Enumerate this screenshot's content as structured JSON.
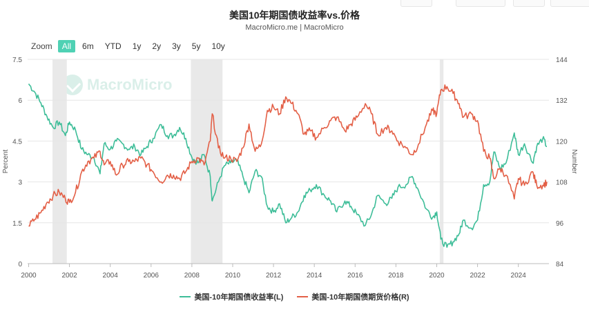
{
  "chart_data": {
    "type": "line",
    "title": "美国10年期国债收益率vs.价格",
    "subtitle": "MacroMicro.me | MacroMicro",
    "watermark": "MacroMicro",
    "ylabel_left": "Percent",
    "ylabel_right": "Number",
    "x_ticks": [
      "2000",
      "2002",
      "2004",
      "2006",
      "2008",
      "2010",
      "2012",
      "2014",
      "2016",
      "2018",
      "2020",
      "2022",
      "2024"
    ],
    "x_range": [
      1999.95,
      2025.5
    ],
    "y_left_ticks": [
      "0",
      "1.5",
      "3",
      "4.5",
      "6",
      "7.5"
    ],
    "y_left_range": [
      0,
      7.5
    ],
    "y_right_ticks": [
      "84",
      "96",
      "108",
      "120",
      "132",
      "144"
    ],
    "y_right_range": [
      84,
      144
    ],
    "grid": true,
    "legend_position": "bottom",
    "recession_bands": [
      [
        2001.17,
        2001.87
      ],
      [
        2007.95,
        2009.5
      ],
      [
        2020.15,
        2020.33
      ]
    ],
    "series": [
      {
        "name": "美国-10年期国债收益率(L)",
        "axis": "left",
        "color": "#3dbd98",
        "x": [
          2000.0,
          2000.3,
          2000.6,
          2000.9,
          2001.2,
          2001.5,
          2001.8,
          2002.0,
          2002.3,
          2002.6,
          2002.9,
          2003.2,
          2003.5,
          2003.7,
          2004.0,
          2004.3,
          2004.6,
          2004.9,
          2005.2,
          2005.5,
          2005.8,
          2006.1,
          2006.5,
          2006.8,
          2007.1,
          2007.4,
          2007.7,
          2008.0,
          2008.3,
          2008.6,
          2008.9,
          2009.0,
          2009.3,
          2009.6,
          2009.9,
          2010.2,
          2010.5,
          2010.8,
          2011.1,
          2011.4,
          2011.7,
          2012.0,
          2012.3,
          2012.6,
          2012.9,
          2013.2,
          2013.5,
          2013.8,
          2014.1,
          2014.5,
          2014.8,
          2015.1,
          2015.5,
          2015.8,
          2016.1,
          2016.5,
          2016.8,
          2017.1,
          2017.5,
          2017.8,
          2018.1,
          2018.5,
          2018.8,
          2019.1,
          2019.5,
          2019.8,
          2020.0,
          2020.2,
          2020.5,
          2020.8,
          2021.1,
          2021.3,
          2021.7,
          2022.0,
          2022.3,
          2022.6,
          2022.8,
          2023.1,
          2023.4,
          2023.8,
          2024.0,
          2024.3,
          2024.7,
          2024.9,
          2025.2,
          2025.4
        ],
        "values": [
          6.6,
          6.3,
          5.9,
          5.4,
          5.0,
          5.2,
          4.7,
          5.2,
          4.9,
          4.2,
          4.0,
          3.9,
          3.3,
          4.4,
          4.2,
          4.5,
          4.4,
          4.2,
          4.3,
          4.0,
          4.3,
          4.6,
          5.1,
          4.7,
          4.7,
          5.0,
          4.6,
          3.9,
          3.7,
          4.0,
          3.2,
          2.3,
          3.0,
          3.6,
          3.7,
          3.8,
          3.2,
          2.6,
          3.4,
          3.2,
          2.1,
          1.9,
          2.2,
          1.5,
          1.7,
          1.9,
          2.5,
          2.7,
          2.9,
          2.5,
          2.3,
          1.9,
          2.3,
          2.1,
          1.8,
          1.4,
          1.8,
          2.5,
          2.2,
          2.4,
          2.8,
          2.9,
          3.2,
          2.7,
          2.0,
          1.7,
          1.9,
          0.9,
          0.6,
          0.8,
          1.1,
          1.6,
          1.3,
          1.6,
          2.9,
          3.0,
          4.1,
          3.5,
          3.7,
          4.8,
          4.0,
          4.4,
          3.7,
          4.3,
          4.6,
          4.3
        ]
      },
      {
        "name": "美国-10年期国债期货价格(R)",
        "axis": "right",
        "color": "#e35f46",
        "x": [
          2000.0,
          2000.3,
          2000.6,
          2000.9,
          2001.2,
          2001.5,
          2001.8,
          2002.0,
          2002.3,
          2002.6,
          2002.9,
          2003.2,
          2003.5,
          2003.7,
          2004.0,
          2004.3,
          2004.6,
          2004.9,
          2005.2,
          2005.5,
          2005.8,
          2006.1,
          2006.5,
          2006.8,
          2007.1,
          2007.4,
          2007.7,
          2008.0,
          2008.3,
          2008.6,
          2008.9,
          2009.0,
          2009.3,
          2009.6,
          2009.9,
          2010.2,
          2010.5,
          2010.8,
          2011.1,
          2011.4,
          2011.7,
          2012.0,
          2012.3,
          2012.6,
          2012.9,
          2013.2,
          2013.5,
          2013.8,
          2014.1,
          2014.5,
          2014.8,
          2015.1,
          2015.5,
          2015.8,
          2016.1,
          2016.5,
          2016.8,
          2017.1,
          2017.5,
          2017.8,
          2018.1,
          2018.5,
          2018.8,
          2019.1,
          2019.5,
          2019.8,
          2020.0,
          2020.2,
          2020.5,
          2020.8,
          2021.1,
          2021.3,
          2021.7,
          2022.0,
          2022.3,
          2022.6,
          2022.8,
          2023.1,
          2023.4,
          2023.8,
          2024.0,
          2024.3,
          2024.7,
          2024.9,
          2025.2,
          2025.4
        ],
        "values": [
          95,
          97,
          99,
          102,
          104,
          105,
          103,
          102,
          105,
          111,
          114,
          115,
          117,
          113,
          114,
          110,
          113,
          114,
          114,
          115,
          113,
          111,
          108,
          110,
          110,
          109,
          111,
          114,
          115,
          113,
          120,
          128,
          118,
          115,
          115,
          114,
          118,
          125,
          117,
          119,
          129,
          130,
          128,
          133,
          131,
          128,
          122,
          123,
          121,
          124,
          126,
          127,
          123,
          125,
          127,
          131,
          128,
          122,
          124,
          123,
          120,
          118,
          116,
          119,
          125,
          129,
          128,
          135,
          136,
          134,
          131,
          127,
          128,
          126,
          117,
          115,
          109,
          112,
          110,
          103,
          109,
          107,
          111,
          107,
          107,
          108
        ]
      }
    ]
  },
  "toolbar": {
    "zoom_label": "Zoom",
    "ranges": [
      "All",
      "6m",
      "YTD",
      "1y",
      "2y",
      "3y",
      "5y",
      "10y"
    ],
    "active_range": "All"
  }
}
